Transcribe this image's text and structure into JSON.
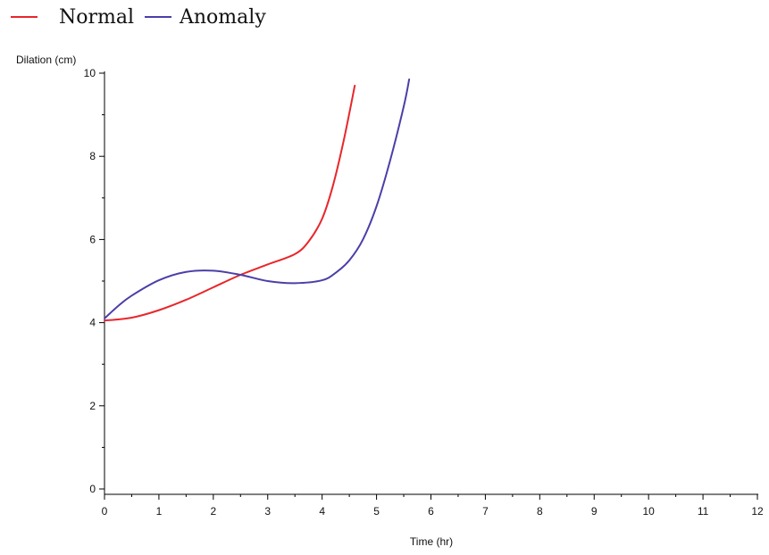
{
  "chart_data": {
    "type": "line",
    "title": "",
    "xlabel": "Time (hr)",
    "ylabel": "Dilation (cm)",
    "xlim": [
      0,
      12
    ],
    "ylim": [
      0,
      10
    ],
    "x_ticks": [
      0,
      1,
      2,
      3,
      4,
      5,
      6,
      7,
      8,
      9,
      10,
      11,
      12
    ],
    "y_ticks": [
      0,
      2,
      4,
      6,
      8,
      10
    ],
    "x_minor_ticks": [
      0.5,
      1.5,
      2.5,
      3.5,
      4.5,
      5.5,
      6.5,
      7.5,
      8.5,
      9.5,
      10.5,
      11.5
    ],
    "y_minor_ticks": [
      1,
      3,
      5,
      7,
      9
    ],
    "grid": false,
    "legend": {
      "position": "top-left"
    },
    "series": [
      {
        "name": "Normal",
        "color": "#e8262b",
        "x": [
          0,
          0.5,
          1,
          1.5,
          2,
          2.5,
          3,
          3.5,
          3.75,
          4,
          4.2,
          4.4,
          4.6
        ],
        "y": [
          4.05,
          4.12,
          4.3,
          4.55,
          4.85,
          5.15,
          5.4,
          5.65,
          5.95,
          6.5,
          7.3,
          8.4,
          9.7
        ]
      },
      {
        "name": "Anomaly",
        "color": "#4b3fa8",
        "x": [
          0,
          0.25,
          0.5,
          1,
          1.5,
          2,
          2.5,
          3,
          3.5,
          4,
          4.25,
          4.5,
          4.75,
          5,
          5.25,
          5.5,
          5.6
        ],
        "y": [
          4.1,
          4.4,
          4.65,
          5.02,
          5.22,
          5.25,
          5.15,
          5.0,
          4.95,
          5.02,
          5.2,
          5.5,
          6.0,
          6.8,
          7.9,
          9.2,
          9.85
        ]
      }
    ]
  }
}
